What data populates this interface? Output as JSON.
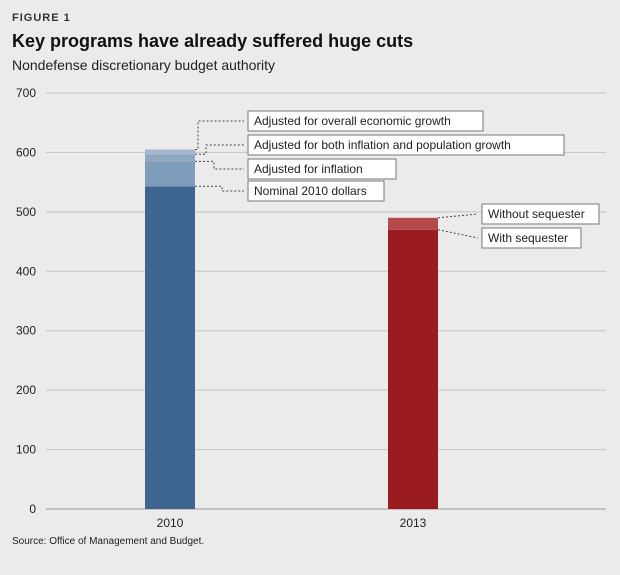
{
  "figure_label": "FIGURE 1",
  "chart_data": {
    "type": "bar",
    "title": "Key programs have already suffered huge cuts",
    "subtitle": "Nondefense discretionary budget authority",
    "xlabel": "",
    "ylabel": "",
    "ylim": [
      0,
      700
    ],
    "yticks": [
      0,
      100,
      200,
      300,
      400,
      500,
      600,
      700
    ],
    "grid": true,
    "categories": [
      "2010",
      "2013"
    ],
    "bars": [
      {
        "category": "2010",
        "base_color": "#3f6690",
        "segments": [
          {
            "name": "Nominal 2010 dollars",
            "value": 543,
            "color": "#3f6690"
          },
          {
            "name": "Adjusted for inflation",
            "value": 585,
            "color": "#7f9cba"
          },
          {
            "name": "Adjusted for both inflation and population growth",
            "value": 597,
            "color": "#8fa8c2"
          },
          {
            "name": "Adjusted for overall economic growth",
            "value": 605,
            "color": "#a3b8cd"
          }
        ]
      },
      {
        "category": "2013",
        "base_color": "#9a1b20",
        "segments": [
          {
            "name": "With sequester",
            "value": 470,
            "color": "#9a1b20"
          },
          {
            "name": "Without sequester",
            "value": 490,
            "color": "#b54a4d"
          }
        ]
      }
    ],
    "annotations": [
      {
        "bar": 0,
        "value": 605,
        "text": "Adjusted for overall economic growth"
      },
      {
        "bar": 0,
        "value": 597,
        "text": "Adjusted for both inflation and population growth"
      },
      {
        "bar": 0,
        "value": 585,
        "text": "Adjusted for inflation"
      },
      {
        "bar": 0,
        "value": 543,
        "text": "Nominal 2010 dollars"
      },
      {
        "bar": 1,
        "value": 490,
        "text": "Without sequester"
      },
      {
        "bar": 1,
        "value": 470,
        "text": "With sequester"
      }
    ],
    "source": "Source: Office of Management and Budget."
  }
}
